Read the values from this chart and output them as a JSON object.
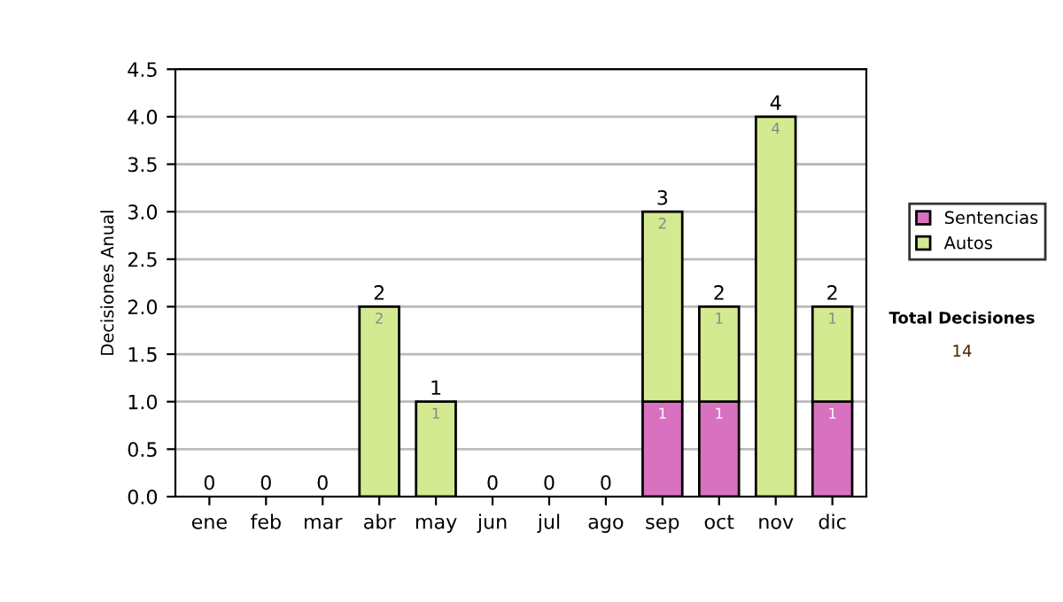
{
  "chart_data": {
    "type": "bar",
    "stacked": true,
    "ylabel": "Decisiones Anual",
    "categories": [
      "ene",
      "feb",
      "mar",
      "abr",
      "may",
      "jun",
      "jul",
      "ago",
      "sep",
      "oct",
      "nov",
      "dic"
    ],
    "series": [
      {
        "name": "Sentencias",
        "color": "#d872c0",
        "values": [
          0,
          0,
          0,
          0,
          0,
          0,
          0,
          0,
          1,
          1,
          0,
          1
        ],
        "value_labels": [
          null,
          null,
          null,
          null,
          null,
          null,
          null,
          null,
          "1",
          "1",
          null,
          "1"
        ]
      },
      {
        "name": "Autos",
        "color": "#d4ea90",
        "values": [
          0,
          0,
          0,
          2,
          1,
          0,
          0,
          0,
          2,
          1,
          4,
          1
        ],
        "value_labels": [
          null,
          null,
          null,
          "2",
          "1",
          null,
          null,
          null,
          "2",
          "1",
          "4",
          "1"
        ]
      }
    ],
    "totals": [
      "0",
      "0",
      "0",
      "2",
      "1",
      "0",
      "0",
      "0",
      "3",
      "2",
      "4",
      "2"
    ],
    "ylim": [
      0,
      4.5
    ],
    "yticks": [
      {
        "value": 0,
        "label": "0.0"
      },
      {
        "value": 0.5,
        "label": "0.5"
      },
      {
        "value": 1,
        "label": "1.0"
      },
      {
        "value": 1.5,
        "label": "1.5"
      },
      {
        "value": 2,
        "label": "2.0"
      },
      {
        "value": 2.5,
        "label": "2.5"
      },
      {
        "value": 3,
        "label": "3.0"
      },
      {
        "value": 3.5,
        "label": "3.5"
      },
      {
        "value": 4,
        "label": "4.0"
      },
      {
        "value": 4.5,
        "label": "4.5"
      }
    ],
    "grid": "y",
    "legend": "right",
    "annotations": [
      "Total Decisiones",
      "14"
    ]
  }
}
